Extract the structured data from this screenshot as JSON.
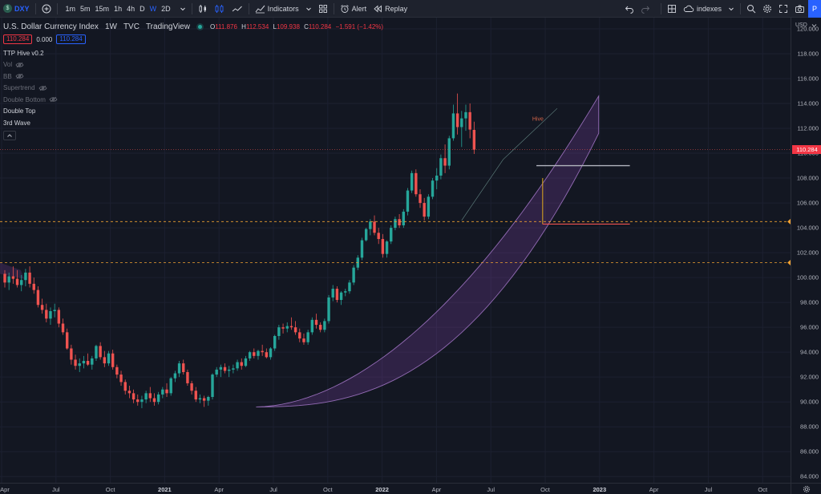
{
  "toolbar": {
    "symbol": "DXY",
    "intervals": [
      {
        "label": "1m",
        "active": false
      },
      {
        "label": "5m",
        "active": false
      },
      {
        "label": "15m",
        "active": false
      },
      {
        "label": "1h",
        "active": false
      },
      {
        "label": "4h",
        "active": false
      },
      {
        "label": "D",
        "active": false
      },
      {
        "label": "W",
        "active": true
      },
      {
        "label": "2D",
        "active": false
      }
    ],
    "indicators_label": "Indicators",
    "alert_label": "Alert",
    "replay_label": "Replay",
    "layout_name": "indexes",
    "publish_label": "P"
  },
  "legend": {
    "title": "U.S. Dollar Currency Index",
    "interval": "1W",
    "source": "TVC",
    "provider": "TradingView",
    "open_label": "O",
    "open": "111.876",
    "high_label": "H",
    "high": "112.534",
    "low_label": "L",
    "low": "109.938",
    "close_label": "C",
    "close": "110.284",
    "change": "−1.591 (−1.42%)",
    "sell_price": "110.284",
    "spread": "0.000",
    "buy_price": "110.284",
    "indicators": [
      {
        "label": "TTP Hive v0.2",
        "dim": false,
        "eye": false
      },
      {
        "label": "Vol",
        "dim": true,
        "eye": true
      },
      {
        "label": "BB",
        "dim": true,
        "eye": true
      },
      {
        "label": "Supertrend",
        "dim": true,
        "eye": true
      },
      {
        "label": "Double Bottom",
        "dim": true,
        "eye": true
      },
      {
        "label": "Double Top",
        "dim": false,
        "eye": false
      },
      {
        "label": "3rd Wave",
        "dim": false,
        "eye": false
      }
    ]
  },
  "price_axis": {
    "currency": "USD",
    "labels": [
      "120.000",
      "118.000",
      "116.000",
      "114.000",
      "112.000",
      "110.000",
      "108.000",
      "106.000",
      "104.000",
      "102.000",
      "100.000",
      "98.000",
      "96.000",
      "94.000",
      "92.000",
      "90.000",
      "88.000",
      "86.000",
      "84.000"
    ],
    "last_price": "110.284"
  },
  "time_axis": {
    "labels": [
      {
        "text": "Apr",
        "year": false
      },
      {
        "text": "Jul",
        "year": false
      },
      {
        "text": "Oct",
        "year": false
      },
      {
        "text": "2021",
        "year": true
      },
      {
        "text": "Apr",
        "year": false
      },
      {
        "text": "Jul",
        "year": false
      },
      {
        "text": "Oct",
        "year": false
      },
      {
        "text": "2022",
        "year": true
      },
      {
        "text": "Apr",
        "year": false
      },
      {
        "text": "Jul",
        "year": false
      },
      {
        "text": "Oct",
        "year": false
      },
      {
        "text": "2023",
        "year": true
      },
      {
        "text": "Apr",
        "year": false
      },
      {
        "text": "Jul",
        "year": false
      },
      {
        "text": "Oct",
        "year": false
      }
    ]
  },
  "chart_annotations": {
    "hive_label": "Hive",
    "levels": [
      104.5,
      101.2
    ],
    "last_price": 110.284,
    "measure_levels": [
      109.0,
      104.3
    ]
  },
  "colors": {
    "up": "#26a69a",
    "down": "#ef5350",
    "background": "#131722",
    "accent": "#2962ff",
    "level_line": "#f0a030",
    "channel_fill": "#7b3fa0",
    "channel_edge": "#b07fd6"
  },
  "chart_data": {
    "type": "candlestick",
    "interval": "weekly",
    "x_start": "2020-03",
    "ylim": [
      83.5,
      120.9
    ],
    "ohlc": [
      [
        100.3,
        100.6,
        99.2,
        99.6
      ],
      [
        99.6,
        100.4,
        99.0,
        100.1
      ],
      [
        100.1,
        100.9,
        99.5,
        99.9
      ],
      [
        99.9,
        100.6,
        99.2,
        99.4
      ],
      [
        99.4,
        100.2,
        98.9,
        99.8
      ],
      [
        99.8,
        100.7,
        99.3,
        100.4
      ],
      [
        100.4,
        100.9,
        99.2,
        99.5
      ],
      [
        99.5,
        100.0,
        98.7,
        99.0
      ],
      [
        99.0,
        99.3,
        97.6,
        97.8
      ],
      [
        97.8,
        98.3,
        97.1,
        97.4
      ],
      [
        97.4,
        97.9,
        96.4,
        96.7
      ],
      [
        96.7,
        97.6,
        96.2,
        97.3
      ],
      [
        97.3,
        97.9,
        96.8,
        97.4
      ],
      [
        97.4,
        97.6,
        96.0,
        96.3
      ],
      [
        96.3,
        96.7,
        95.4,
        95.6
      ],
      [
        95.6,
        95.9,
        94.2,
        94.3
      ],
      [
        94.3,
        94.6,
        93.0,
        93.4
      ],
      [
        93.4,
        93.8,
        92.6,
        92.9
      ],
      [
        92.9,
        93.5,
        92.4,
        93.1
      ],
      [
        93.1,
        93.7,
        92.7,
        93.3
      ],
      [
        93.3,
        93.9,
        92.9,
        93.0
      ],
      [
        93.0,
        93.7,
        92.6,
        93.5
      ],
      [
        93.5,
        94.6,
        93.3,
        94.5
      ],
      [
        94.5,
        94.8,
        93.4,
        93.6
      ],
      [
        93.6,
        94.1,
        92.8,
        93.1
      ],
      [
        93.1,
        94.1,
        92.9,
        93.9
      ],
      [
        93.9,
        94.2,
        92.6,
        92.8
      ],
      [
        92.8,
        93.0,
        91.9,
        92.2
      ],
      [
        92.2,
        92.5,
        91.3,
        91.6
      ],
      [
        91.6,
        91.8,
        90.6,
        90.9
      ],
      [
        90.9,
        91.3,
        90.3,
        90.7
      ],
      [
        90.7,
        91.0,
        89.9,
        90.2
      ],
      [
        90.2,
        90.6,
        89.7,
        90.0
      ],
      [
        90.0,
        90.5,
        89.5,
        90.2
      ],
      [
        90.2,
        90.9,
        89.9,
        90.7
      ],
      [
        90.7,
        91.2,
        90.0,
        90.3
      ],
      [
        90.3,
        90.7,
        89.7,
        90.0
      ],
      [
        90.0,
        90.8,
        89.8,
        90.6
      ],
      [
        90.6,
        91.2,
        90.3,
        91.0
      ],
      [
        91.0,
        91.5,
        90.4,
        90.7
      ],
      [
        90.7,
        92.0,
        90.5,
        91.9
      ],
      [
        91.9,
        92.5,
        91.6,
        92.3
      ],
      [
        92.3,
        93.3,
        92.0,
        93.1
      ],
      [
        93.1,
        93.4,
        92.2,
        92.4
      ],
      [
        92.4,
        92.6,
        91.3,
        91.5
      ],
      [
        91.5,
        91.7,
        90.6,
        90.9
      ],
      [
        90.9,
        91.2,
        90.0,
        90.2
      ],
      [
        90.2,
        90.6,
        89.9,
        90.3
      ],
      [
        90.3,
        90.5,
        89.6,
        90.1
      ],
      [
        90.1,
        90.5,
        89.7,
        90.4
      ],
      [
        90.4,
        92.3,
        90.2,
        92.2
      ],
      [
        92.2,
        92.8,
        92.0,
        92.6
      ],
      [
        92.6,
        93.0,
        92.0,
        92.8
      ],
      [
        92.8,
        93.1,
        92.3,
        92.5
      ],
      [
        92.5,
        92.9,
        92.0,
        92.6
      ],
      [
        92.6,
        93.0,
        92.3,
        92.7
      ],
      [
        92.7,
        93.4,
        92.5,
        93.2
      ],
      [
        93.2,
        93.5,
        92.6,
        92.9
      ],
      [
        92.9,
        93.7,
        92.8,
        93.5
      ],
      [
        93.5,
        94.1,
        93.3,
        94.0
      ],
      [
        94.0,
        94.3,
        93.5,
        93.7
      ],
      [
        93.7,
        94.2,
        93.4,
        94.1
      ],
      [
        94.1,
        94.6,
        93.7,
        94.0
      ],
      [
        94.0,
        94.3,
        93.5,
        93.6
      ],
      [
        93.6,
        94.4,
        93.4,
        94.3
      ],
      [
        94.3,
        95.4,
        94.1,
        95.3
      ],
      [
        95.3,
        96.2,
        95.0,
        96.0
      ],
      [
        96.0,
        96.3,
        95.5,
        95.9
      ],
      [
        95.9,
        96.4,
        95.6,
        96.1
      ],
      [
        96.1,
        96.8,
        95.8,
        96.0
      ],
      [
        96.0,
        96.5,
        95.4,
        95.6
      ],
      [
        95.6,
        95.9,
        94.8,
        95.1
      ],
      [
        95.1,
        95.5,
        94.6,
        94.8
      ],
      [
        94.8,
        95.8,
        94.6,
        95.6
      ],
      [
        95.6,
        96.8,
        95.4,
        96.6
      ],
      [
        96.6,
        97.1,
        95.9,
        96.2
      ],
      [
        96.2,
        96.4,
        95.6,
        95.8
      ],
      [
        95.8,
        96.7,
        95.6,
        96.5
      ],
      [
        96.5,
        98.6,
        96.3,
        98.4
      ],
      [
        98.4,
        99.4,
        98.1,
        99.1
      ],
      [
        99.1,
        99.3,
        98.0,
        98.2
      ],
      [
        98.2,
        98.9,
        97.8,
        98.8
      ],
      [
        98.8,
        99.1,
        98.5,
        98.9
      ],
      [
        98.9,
        99.8,
        98.7,
        99.6
      ],
      [
        99.6,
        101.0,
        99.4,
        100.8
      ],
      [
        100.8,
        101.8,
        100.6,
        101.6
      ],
      [
        101.6,
        103.2,
        101.4,
        103.0
      ],
      [
        103.0,
        104.0,
        102.9,
        103.9
      ],
      [
        103.9,
        104.7,
        103.4,
        104.5
      ],
      [
        104.5,
        105.0,
        103.4,
        103.6
      ],
      [
        103.6,
        104.0,
        102.7,
        103.1
      ],
      [
        103.1,
        103.5,
        101.6,
        101.9
      ],
      [
        101.9,
        103.0,
        101.6,
        102.9
      ],
      [
        102.9,
        104.2,
        102.7,
        104.0
      ],
      [
        104.0,
        104.9,
        103.8,
        104.7
      ],
      [
        104.7,
        105.1,
        104.0,
        104.2
      ],
      [
        104.2,
        105.5,
        104.0,
        105.3
      ],
      [
        105.3,
        107.2,
        105.0,
        107.0
      ],
      [
        107.0,
        108.6,
        106.8,
        108.4
      ],
      [
        108.4,
        108.7,
        106.5,
        106.7
      ],
      [
        106.7,
        107.1,
        105.6,
        106.0
      ],
      [
        106.0,
        106.4,
        104.6,
        104.9
      ],
      [
        104.9,
        106.7,
        104.7,
        106.5
      ],
      [
        106.5,
        108.0,
        106.3,
        107.8
      ],
      [
        107.8,
        108.8,
        107.1,
        108.2
      ],
      [
        108.2,
        109.9,
        107.9,
        109.6
      ],
      [
        109.6,
        110.7,
        108.4,
        109.0
      ],
      [
        109.0,
        111.4,
        108.7,
        111.2
      ],
      [
        111.2,
        113.9,
        111.0,
        113.2
      ],
      [
        113.2,
        114.8,
        111.5,
        112.1
      ],
      [
        112.1,
        113.4,
        110.5,
        112.8
      ],
      [
        112.8,
        113.9,
        111.8,
        113.3
      ],
      [
        113.3,
        114.0,
        111.2,
        111.9
      ],
      [
        111.876,
        112.534,
        109.938,
        110.284
      ]
    ]
  }
}
